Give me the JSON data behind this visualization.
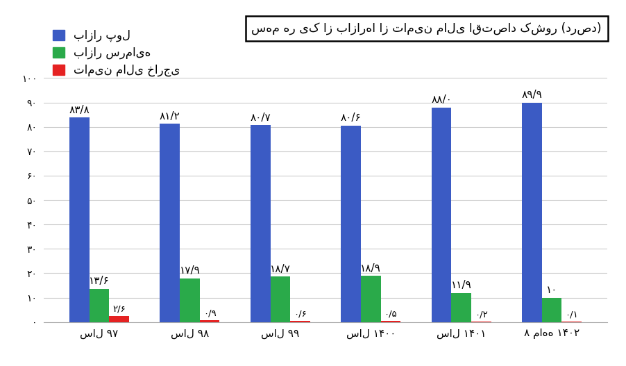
{
  "categories_fa": [
    "سال ۹۷",
    "سال ۹۸",
    "سال ۹۹",
    "سال ۱۴۰۰",
    "سال ۱۴۰۱",
    "۸ ماهه ۱۴۰۲"
  ],
  "bazar_pool": [
    83.8,
    81.2,
    80.7,
    80.6,
    88.0,
    89.9
  ],
  "bazar_sarmaye": [
    13.6,
    17.9,
    18.7,
    18.9,
    11.9,
    10.0
  ],
  "tamim_mali": [
    2.6,
    0.9,
    0.6,
    0.5,
    0.2,
    0.1
  ],
  "bazar_pool_labels": [
    "۸۳/۸",
    "۸۱/۲",
    "۸۰/۷",
    "۸۰/۶",
    "۸۸/۰",
    "۸۹/۹"
  ],
  "bazar_sarmaye_labels": [
    "۱۳/۶",
    "۱۷/۹",
    "۱۸/۷",
    "۱۸/۹",
    "۱۱/۹",
    "۱۰"
  ],
  "tamim_mali_labels": [
    "۲/۶",
    "۰/۹",
    "۰/۶",
    "۰/۵",
    "۰/۲",
    "۰/۱"
  ],
  "color_pool": "#3b5bc4",
  "color_sarmaye": "#2aaa4a",
  "color_tamim": "#e52222",
  "legend_pool": "بازار پول",
  "legend_sarmaye": "بازار سرمایه",
  "legend_tamim": "تامین مالی خارجی",
  "title": "سهم هر یک از بازارها از تامین مالی اقتصاد کشور (درصد)",
  "yticks": [
    0,
    10,
    20,
    30,
    40,
    50,
    60,
    70,
    80,
    90,
    100
  ],
  "ytick_labels_fa": [
    "۰",
    "۱۰",
    "۲۰",
    "۳۰",
    "۴۰",
    "۵۰",
    "۶۰",
    "۷۰",
    "۸۰",
    "۹۰",
    "۱۰۰"
  ],
  "ylim": [
    0,
    105
  ],
  "background_color": "#ffffff",
  "bar_width": 0.22
}
